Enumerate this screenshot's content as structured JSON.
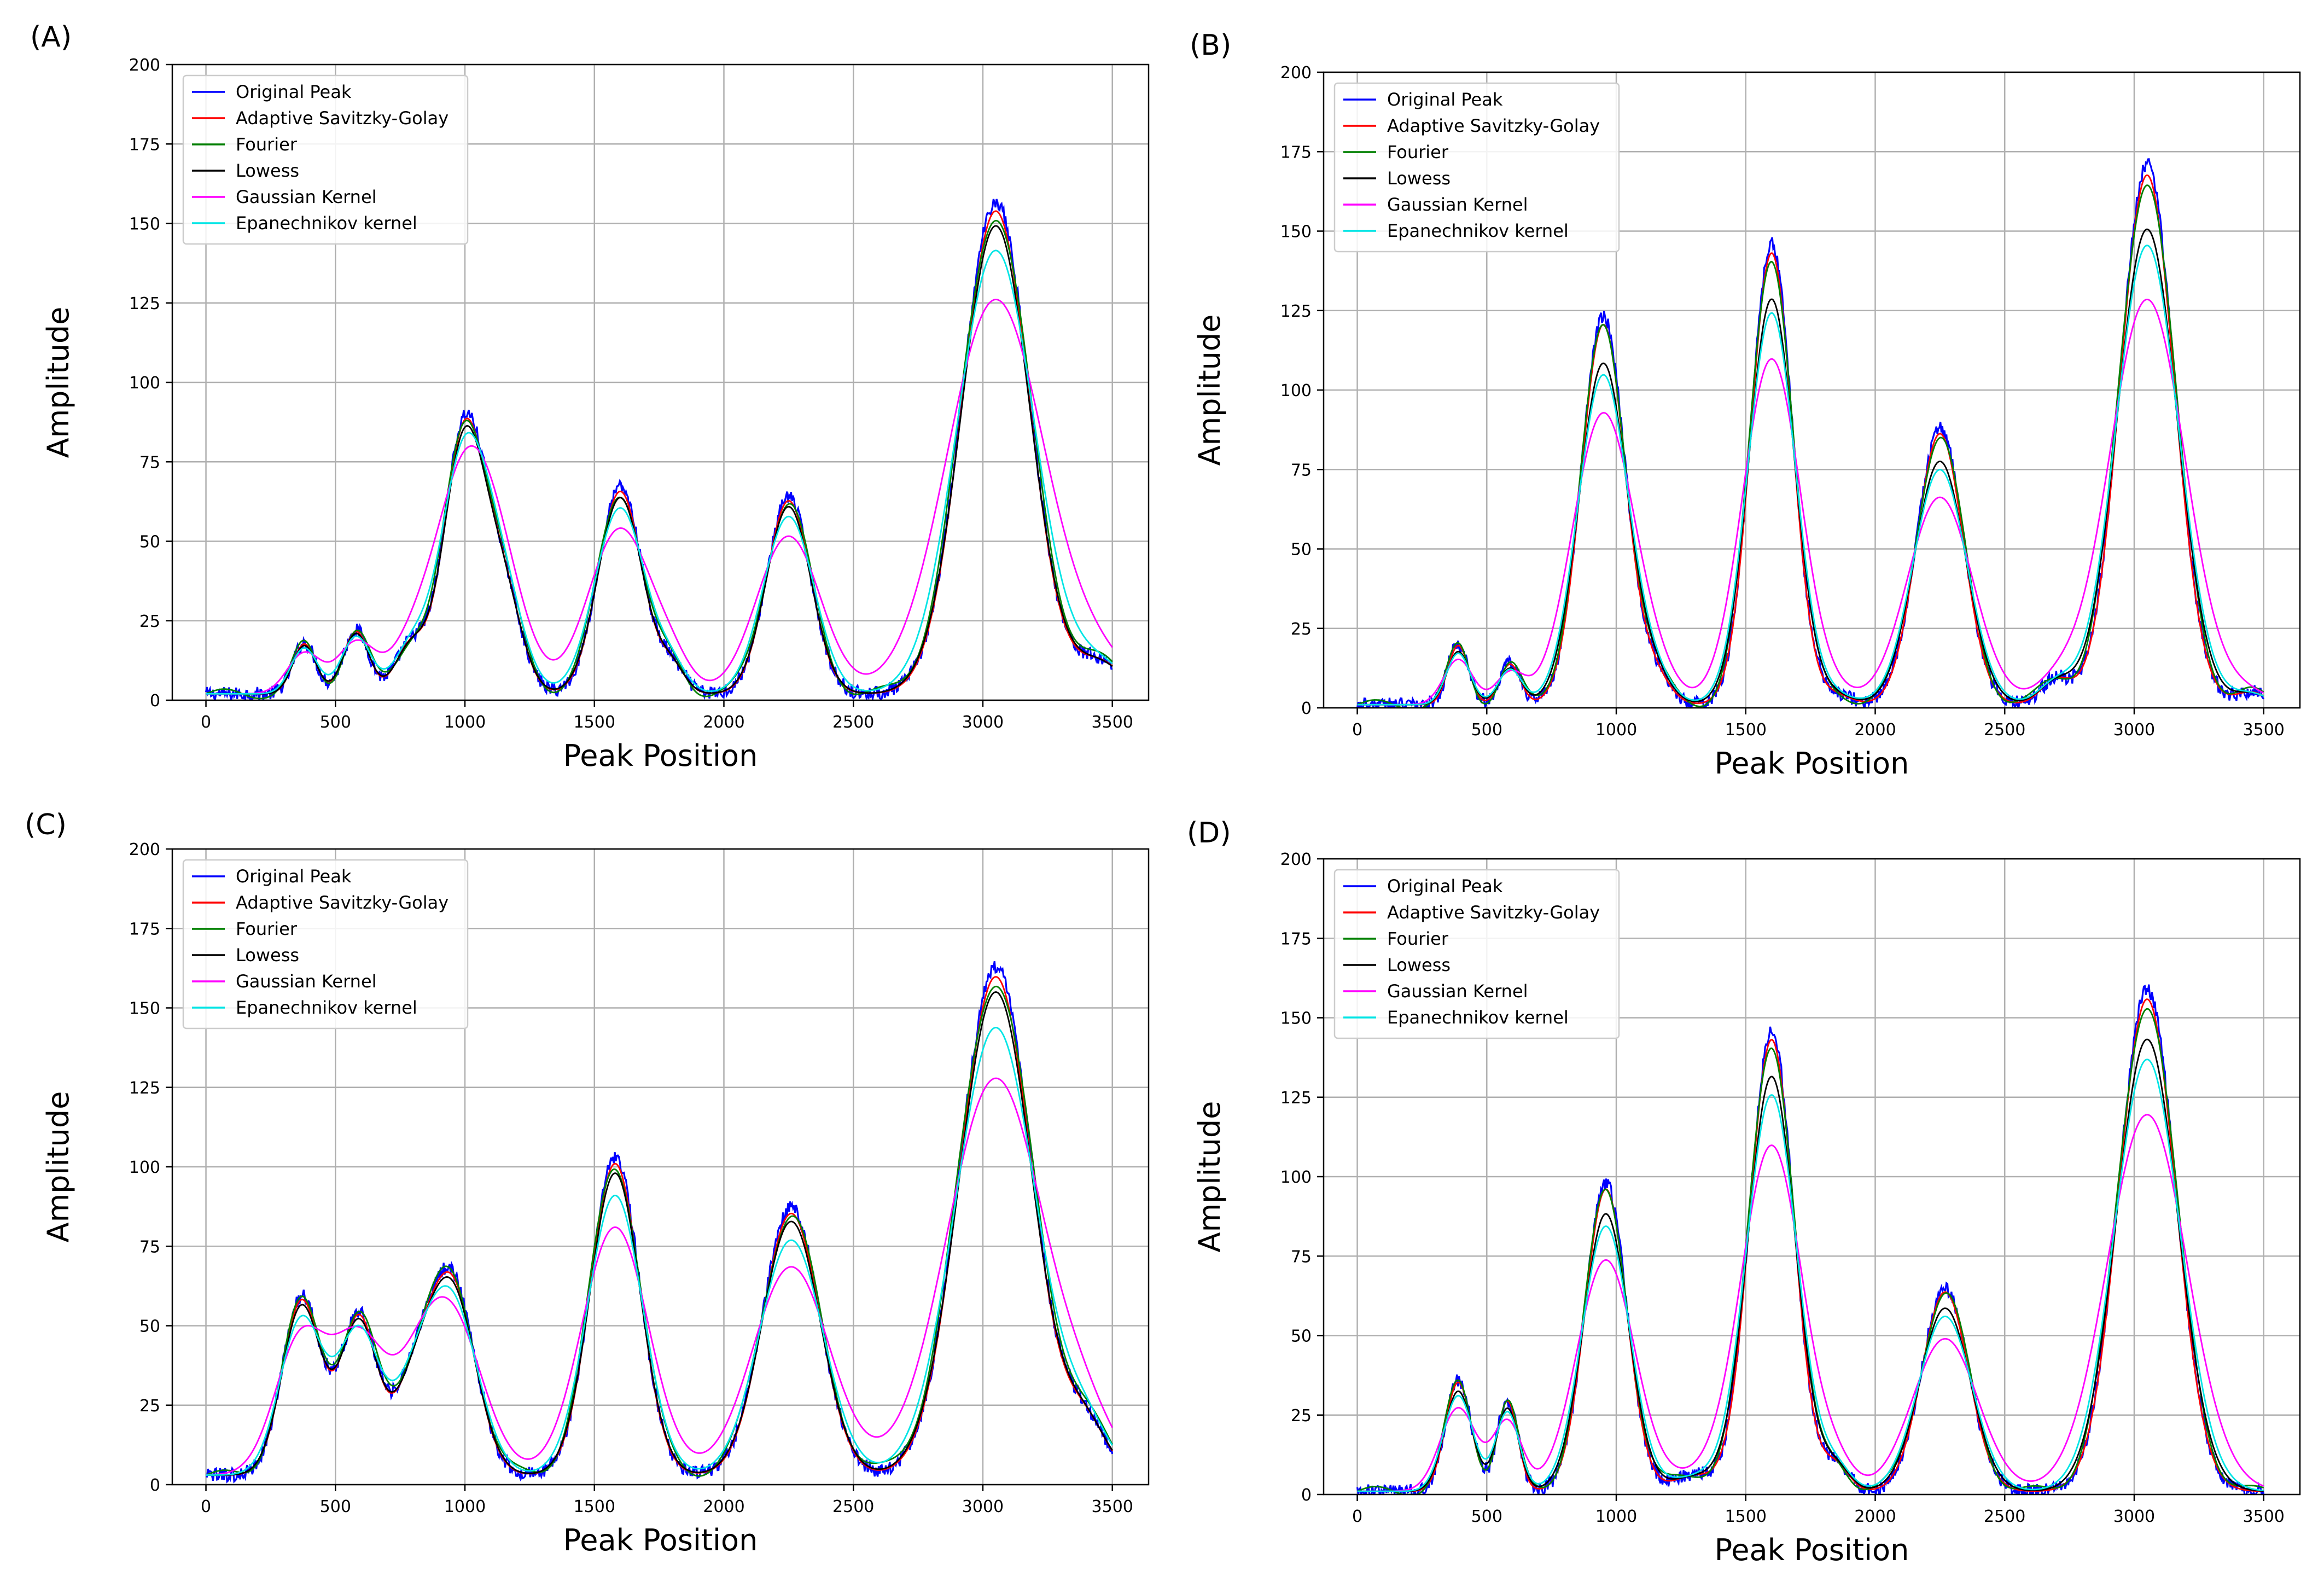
{
  "figure": {
    "panel_labels": [
      "(A)",
      "(B)",
      "(C)",
      "(D)"
    ]
  },
  "chart_data": [
    {
      "type": "line",
      "panel": "(A)",
      "xlabel": "Peak Position",
      "ylabel": "Amplitude",
      "xlim": [
        -130,
        3640
      ],
      "ylim": [
        0,
        200
      ],
      "xticks": [
        0,
        500,
        1000,
        1500,
        2000,
        2500,
        3000,
        3500
      ],
      "yticks": [
        0,
        25,
        50,
        75,
        100,
        125,
        150,
        175,
        200
      ],
      "grid": true,
      "legend_position": "top-left",
      "baseline": 2,
      "peaks": [
        [
          380,
          16,
          45
        ],
        [
          580,
          20,
          50
        ],
        [
          790,
          15,
          60
        ],
        [
          1000,
          85,
          80
        ],
        [
          1150,
          30,
          70
        ],
        [
          1600,
          65,
          85
        ],
        [
          1800,
          8,
          50
        ],
        [
          2250,
          62,
          85
        ],
        [
          3050,
          155,
          130
        ],
        [
          3450,
          10,
          90
        ]
      ],
      "series": [
        {
          "name": "Original Peak",
          "color": "#0000ff",
          "kind": "original",
          "noise": 2.2
        },
        {
          "name": "Adaptive Savitzky-Golay",
          "color": "#ff0000",
          "kind": "smooth",
          "scale": 0.98,
          "widen": 1.0
        },
        {
          "name": "Fourier",
          "color": "#008000",
          "kind": "smooth",
          "scale": 0.97,
          "widen": 1.05,
          "ripple": 1.5
        },
        {
          "name": "Lowess",
          "color": "#000000",
          "kind": "smooth",
          "scale": 0.95,
          "widen": 1.02
        },
        {
          "name": "Gaussian Kernel",
          "color": "#ff00ff",
          "kind": "smooth",
          "scale": 0.8,
          "widen": 1.45
        },
        {
          "name": "Epanechnikov kernel",
          "color": "#00e5e5",
          "kind": "smooth",
          "scale": 0.9,
          "widen": 1.15
        }
      ]
    },
    {
      "type": "line",
      "panel": "(B)",
      "xlabel": "Peak Position",
      "ylabel": "Amplitude",
      "xlim": [
        -130,
        3640
      ],
      "ylim": [
        0,
        200
      ],
      "xticks": [
        0,
        500,
        1000,
        1500,
        2000,
        2500,
        3000,
        3500
      ],
      "yticks": [
        0,
        25,
        50,
        75,
        100,
        125,
        150,
        175,
        200
      ],
      "grid": true,
      "legend_position": "top-left",
      "baseline": 1,
      "peaks": [
        [
          390,
          19,
          40
        ],
        [
          590,
          13,
          40
        ],
        [
          950,
          122,
          85
        ],
        [
          1150,
          8,
          60
        ],
        [
          1600,
          145,
          80
        ],
        [
          1850,
          3,
          60
        ],
        [
          2250,
          87,
          90
        ],
        [
          2700,
          8,
          60
        ],
        [
          3050,
          170,
          105
        ],
        [
          3450,
          4,
          60
        ]
      ],
      "series": [
        {
          "name": "Original Peak",
          "color": "#0000ff",
          "kind": "original",
          "noise": 2.2
        },
        {
          "name": "Adaptive Savitzky-Golay",
          "color": "#ff0000",
          "kind": "smooth",
          "scale": 0.98,
          "widen": 1.0
        },
        {
          "name": "Fourier",
          "color": "#008000",
          "kind": "smooth",
          "scale": 0.97,
          "widen": 1.05,
          "ripple": 1.5
        },
        {
          "name": "Lowess",
          "color": "#000000",
          "kind": "smooth",
          "scale": 0.88,
          "widen": 1.1
        },
        {
          "name": "Gaussian Kernel",
          "color": "#ff00ff",
          "kind": "smooth",
          "scale": 0.75,
          "widen": 1.4
        },
        {
          "name": "Epanechnikov kernel",
          "color": "#00e5e5",
          "kind": "smooth",
          "scale": 0.85,
          "widen": 1.15
        }
      ]
    },
    {
      "type": "line",
      "panel": "(C)",
      "xlabel": "Peak Position",
      "ylabel": "Amplitude",
      "xlim": [
        -130,
        3640
      ],
      "ylim": [
        0,
        200
      ],
      "xticks": [
        0,
        500,
        1000,
        1500,
        2000,
        2500,
        3000,
        3500
      ],
      "yticks": [
        0,
        25,
        50,
        75,
        100,
        125,
        150,
        175,
        200
      ],
      "grid": true,
      "legend_position": "top-left",
      "baseline": 3,
      "peaks": [
        [
          370,
          56,
          75
        ],
        [
          590,
          50,
          70
        ],
        [
          800,
          25,
          80
        ],
        [
          950,
          60,
          90
        ],
        [
          1580,
          100,
          95
        ],
        [
          2260,
          84,
          110
        ],
        [
          3050,
          160,
          140
        ],
        [
          3400,
          15,
          80
        ]
      ],
      "series": [
        {
          "name": "Original Peak",
          "color": "#0000ff",
          "kind": "original",
          "noise": 2.2
        },
        {
          "name": "Adaptive Savitzky-Golay",
          "color": "#ff0000",
          "kind": "smooth",
          "scale": 0.98,
          "widen": 1.0
        },
        {
          "name": "Fourier",
          "color": "#008000",
          "kind": "smooth",
          "scale": 0.97,
          "widen": 1.05,
          "ripple": 1.5
        },
        {
          "name": "Lowess",
          "color": "#000000",
          "kind": "smooth",
          "scale": 0.95,
          "widen": 1.02
        },
        {
          "name": "Gaussian Kernel",
          "color": "#ff00ff",
          "kind": "smooth",
          "scale": 0.78,
          "widen": 1.35
        },
        {
          "name": "Epanechnikov kernel",
          "color": "#00e5e5",
          "kind": "smooth",
          "scale": 0.88,
          "widen": 1.12
        }
      ]
    },
    {
      "type": "line",
      "panel": "(D)",
      "xlabel": "Peak Position",
      "ylabel": "Amplitude",
      "xlim": [
        -130,
        3640
      ],
      "ylim": [
        0,
        200
      ],
      "xticks": [
        0,
        500,
        1000,
        1500,
        2000,
        2500,
        3000,
        3500
      ],
      "yticks": [
        0,
        25,
        50,
        75,
        100,
        125,
        150,
        175,
        200
      ],
      "grid": true,
      "legend_position": "top-left",
      "baseline": 1,
      "peaks": [
        [
          390,
          35,
          50
        ],
        [
          580,
          29,
          40
        ],
        [
          960,
          97,
          80
        ],
        [
          1300,
          5,
          80
        ],
        [
          1600,
          145,
          85
        ],
        [
          1850,
          8,
          50
        ],
        [
          2270,
          64,
          90
        ],
        [
          3050,
          158,
          110
        ]
      ],
      "series": [
        {
          "name": "Original Peak",
          "color": "#0000ff",
          "kind": "original",
          "noise": 2.2
        },
        {
          "name": "Adaptive Savitzky-Golay",
          "color": "#ff0000",
          "kind": "smooth",
          "scale": 0.98,
          "widen": 1.0
        },
        {
          "name": "Fourier",
          "color": "#008000",
          "kind": "smooth",
          "scale": 0.97,
          "widen": 1.05,
          "ripple": 1.5
        },
        {
          "name": "Lowess",
          "color": "#000000",
          "kind": "smooth",
          "scale": 0.9,
          "widen": 1.08
        },
        {
          "name": "Gaussian Kernel",
          "color": "#ff00ff",
          "kind": "smooth",
          "scale": 0.75,
          "widen": 1.4
        },
        {
          "name": "Epanechnikov kernel",
          "color": "#00e5e5",
          "kind": "smooth",
          "scale": 0.86,
          "widen": 1.15
        }
      ]
    }
  ]
}
